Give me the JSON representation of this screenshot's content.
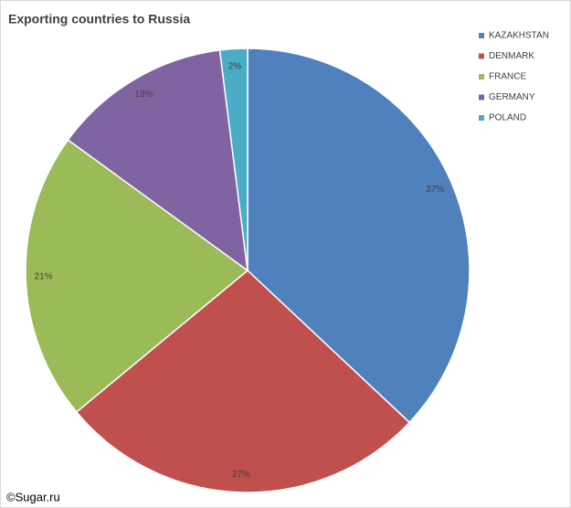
{
  "chart_data": {
    "type": "pie",
    "title": "Exporting countries to Russia",
    "categories": [
      "KAZAKHSTAN",
      "DENMARK",
      "FRANCE",
      "GERMANY",
      "POLAND"
    ],
    "values": [
      37,
      27,
      21,
      13,
      2
    ],
    "value_labels": [
      "37%",
      "27%",
      "21%",
      "13%",
      "2%"
    ],
    "colors": [
      "#4f81bd",
      "#c0504d",
      "#9bbb59",
      "#8064a2",
      "#4bacc6"
    ],
    "legend": "top-right",
    "source": "©Sugar.ru"
  }
}
